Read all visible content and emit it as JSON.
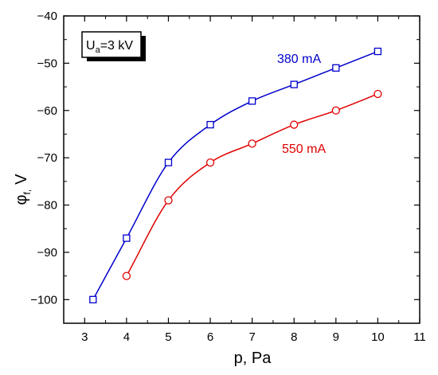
{
  "chart_data": {
    "type": "line",
    "xlabel": "p, Pa",
    "ylabel": "φ",
    "ylabel_subscript": "f,",
    "ylabel_unit": "V",
    "xlim": [
      2.5,
      11
    ],
    "ylim": [
      -105,
      -40
    ],
    "xticks": [
      3,
      4,
      5,
      6,
      7,
      8,
      9,
      10,
      11
    ],
    "yticks": [
      -100,
      -90,
      -80,
      -70,
      -60,
      -50,
      -40
    ],
    "grid": false,
    "annotation": {
      "main": "U",
      "subscript": "a",
      "rest": "=3 kV"
    },
    "series": [
      {
        "name": "380 mA",
        "color": "#0000cc",
        "marker": "square",
        "x": [
          3.2,
          4,
          5,
          6,
          7,
          8,
          9,
          10
        ],
        "y": [
          -100,
          -87,
          -71,
          -63,
          -58,
          -54.5,
          -51,
          -47.5
        ]
      },
      {
        "name": "550 mA",
        "color": "#e00000",
        "marker": "circle",
        "x": [
          4,
          5,
          6,
          7,
          8,
          9,
          10
        ],
        "y": [
          -95,
          -79,
          -71,
          -67,
          -63,
          -60,
          -56.5
        ]
      }
    ]
  }
}
